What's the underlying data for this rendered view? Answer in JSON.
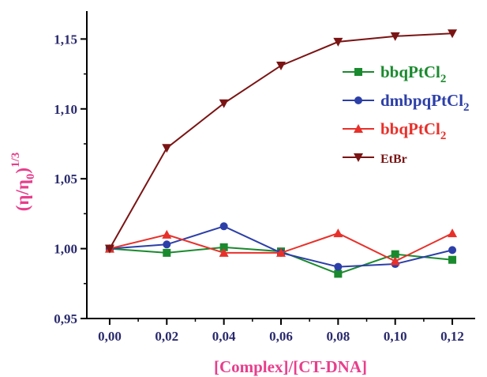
{
  "chart_data": {
    "type": "line",
    "x": [
      0.0,
      0.02,
      0.04,
      0.06,
      0.08,
      0.1,
      0.12
    ],
    "xticks": [
      "0,00",
      "0,02",
      "0,04",
      "0,06",
      "0,08",
      "0,10",
      "0,12"
    ],
    "yticks": [
      "0,95",
      "1,00",
      "1,05",
      "1,10",
      "1,15"
    ],
    "ytick_values": [
      0.95,
      1.0,
      1.05,
      1.1,
      1.15
    ],
    "xlim": [
      -0.008,
      0.128
    ],
    "ylim": [
      0.95,
      1.17
    ],
    "xlabel": "[Complex]/[CT-DNA]",
    "ylabel_main": "(η/η",
    "ylabel_sub": "0",
    "ylabel_close": ")",
    "ylabel_sup": "1/3",
    "grid": false,
    "legend_position": "right",
    "series": [
      {
        "name": "bbqPtCl",
        "name_sub": "2",
        "color": "#1a8a2e",
        "marker": "square",
        "values": [
          1.0,
          0.997,
          1.001,
          0.998,
          0.982,
          0.996,
          0.992
        ]
      },
      {
        "name": "dmbpqPtCl",
        "name_sub": "2",
        "color": "#2c3fa8",
        "marker": "circle",
        "values": [
          1.0,
          1.003,
          1.016,
          0.997,
          0.987,
          0.989,
          0.999
        ]
      },
      {
        "name": "bbqPtCl",
        "name_sub": "2",
        "color": "#e8302a",
        "marker": "triangle-up",
        "values": [
          1.0,
          1.01,
          0.997,
          0.997,
          1.011,
          0.991,
          1.011
        ]
      },
      {
        "name": "EtBr",
        "name_sub": "",
        "color": "#7a1414",
        "marker": "triangle-down",
        "values": [
          1.0,
          1.072,
          1.104,
          1.131,
          1.148,
          1.152,
          1.154
        ]
      }
    ]
  }
}
